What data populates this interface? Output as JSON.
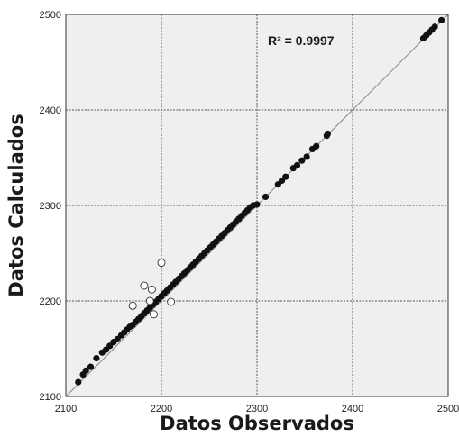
{
  "chart_data": {
    "type": "scatter",
    "title": "",
    "xlabel": "Datos Observados",
    "ylabel": "Datos Calculados",
    "xlim": [
      2100,
      2500
    ],
    "ylim": [
      2100,
      2500
    ],
    "xticks": [
      2100,
      2200,
      2300,
      2400,
      2500
    ],
    "yticks": [
      2100,
      2200,
      2300,
      2400,
      2500
    ],
    "xtick_labels": [
      "2100",
      "2200",
      "2300",
      "2400",
      "2500"
    ],
    "ytick_labels": [
      "2100",
      "2200",
      "2300",
      "2400",
      "2500"
    ],
    "grid": true,
    "annotation": "R² = 0.9997",
    "identity_line": [
      [
        2100,
        2100
      ],
      [
        2500,
        2500
      ]
    ],
    "colors": {
      "plot_background": "#efefef",
      "grid": "#555555",
      "filled_marker": "#111111",
      "hollow_marker_fill": "#ffffff",
      "hollow_marker_stroke": "#333333",
      "identity_line": "#888888"
    },
    "series": [
      {
        "marker": "filled",
        "points": [
          [
            2113,
            2115
          ],
          [
            2118,
            2123
          ],
          [
            2121,
            2127
          ],
          [
            2126,
            2131
          ],
          [
            2132,
            2140
          ],
          [
            2138,
            2146
          ],
          [
            2142,
            2149
          ],
          [
            2146,
            2153
          ],
          [
            2150,
            2157
          ],
          [
            2154,
            2160
          ],
          [
            2158,
            2164
          ],
          [
            2161,
            2167
          ],
          [
            2164,
            2170
          ],
          [
            2167,
            2173
          ],
          [
            2170,
            2175
          ],
          [
            2173,
            2178
          ],
          [
            2176,
            2181
          ],
          [
            2179,
            2184
          ],
          [
            2182,
            2187
          ],
          [
            2185,
            2190
          ],
          [
            2188,
            2193
          ],
          [
            2191,
            2196
          ],
          [
            2194,
            2199
          ],
          [
            2197,
            2202
          ],
          [
            2200,
            2205
          ],
          [
            2203,
            2208
          ],
          [
            2206,
            2211
          ],
          [
            2209,
            2214
          ],
          [
            2212,
            2217
          ],
          [
            2215,
            2220
          ],
          [
            2218,
            2223
          ],
          [
            2221,
            2226
          ],
          [
            2224,
            2229
          ],
          [
            2227,
            2232
          ],
          [
            2230,
            2235
          ],
          [
            2233,
            2238
          ],
          [
            2236,
            2241
          ],
          [
            2239,
            2244
          ],
          [
            2242,
            2247
          ],
          [
            2245,
            2250
          ],
          [
            2248,
            2253
          ],
          [
            2251,
            2256
          ],
          [
            2254,
            2259
          ],
          [
            2257,
            2262
          ],
          [
            2260,
            2265
          ],
          [
            2263,
            2268
          ],
          [
            2266,
            2271
          ],
          [
            2269,
            2274
          ],
          [
            2272,
            2277
          ],
          [
            2275,
            2280
          ],
          [
            2278,
            2283
          ],
          [
            2281,
            2286
          ],
          [
            2284,
            2289
          ],
          [
            2287,
            2292
          ],
          [
            2290,
            2295
          ],
          [
            2293,
            2298
          ],
          [
            2296,
            2300
          ],
          [
            2300,
            2301
          ],
          [
            2309,
            2309
          ],
          [
            2322,
            2322
          ],
          [
            2326,
            2326
          ],
          [
            2330,
            2330
          ],
          [
            2338,
            2339
          ],
          [
            2342,
            2342
          ],
          [
            2347,
            2347
          ],
          [
            2352,
            2351
          ],
          [
            2358,
            2359
          ],
          [
            2362,
            2362
          ],
          [
            2373,
            2373
          ],
          [
            2374,
            2375
          ],
          [
            2474,
            2475
          ],
          [
            2477,
            2478
          ],
          [
            2480,
            2481
          ],
          [
            2483,
            2484
          ],
          [
            2486,
            2487
          ],
          [
            2493,
            2494
          ]
        ]
      },
      {
        "marker": "hollow",
        "points": [
          [
            2170,
            2195
          ],
          [
            2182,
            2216
          ],
          [
            2188,
            2200
          ],
          [
            2190,
            2212
          ],
          [
            2192,
            2186
          ],
          [
            2200,
            2240
          ],
          [
            2210,
            2199
          ]
        ]
      }
    ]
  }
}
